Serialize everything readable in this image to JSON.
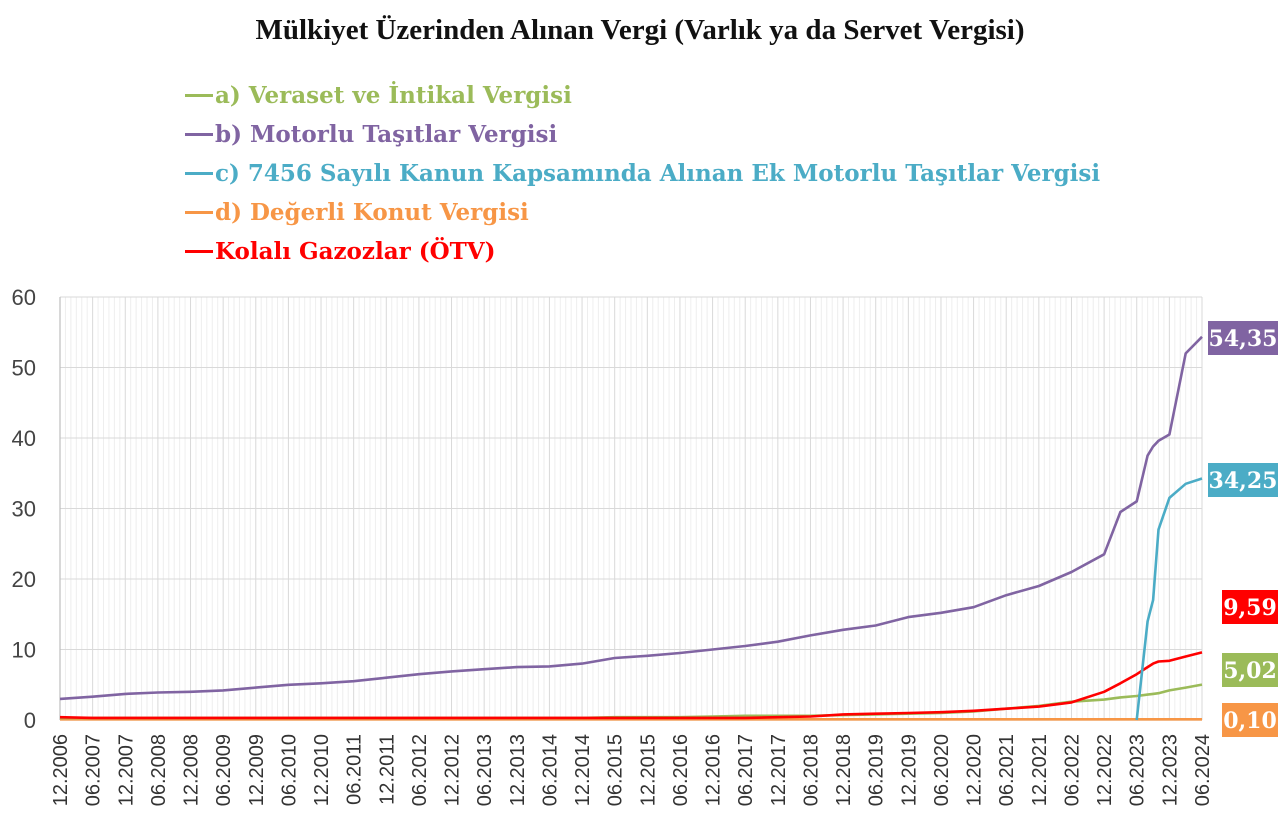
{
  "chart_data": {
    "type": "line",
    "title": "Mülkiyet Üzerinden Alınan Vergi (Varlık ya da Servet Vergisi)",
    "xlabel": "",
    "ylabel": "",
    "ylim": [
      0,
      60
    ],
    "yticks": [
      "0",
      "10",
      "20",
      "30",
      "40",
      "50",
      "60"
    ],
    "grid": true,
    "legend_position": "top-left",
    "x_tick_labels": [
      "12.2006",
      "06.2007",
      "12.2007",
      "06.2008",
      "12.2008",
      "06.2009",
      "12.2009",
      "06.2010",
      "12.2010",
      "06.2011",
      "12.2011",
      "06.2012",
      "12.2012",
      "06.2013",
      "12.2013",
      "06.2014",
      "12.2014",
      "06.2015",
      "12.2015",
      "06.2016",
      "12.2016",
      "06.2017",
      "12.2017",
      "06.2018",
      "12.2018",
      "06.2019",
      "12.2019",
      "06.2020",
      "12.2020",
      "06.2021",
      "12.2021",
      "06.2022",
      "12.2022",
      "06.2023",
      "12.2023",
      "06.2024"
    ],
    "x": [
      "2006-12",
      "2007-06",
      "2007-12",
      "2008-06",
      "2008-12",
      "2009-06",
      "2009-12",
      "2010-06",
      "2010-12",
      "2011-06",
      "2011-12",
      "2012-06",
      "2012-12",
      "2013-06",
      "2013-12",
      "2014-06",
      "2014-12",
      "2015-06",
      "2015-12",
      "2016-06",
      "2016-12",
      "2017-06",
      "2017-12",
      "2018-06",
      "2018-12",
      "2019-06",
      "2019-12",
      "2020-06",
      "2020-12",
      "2021-06",
      "2021-12",
      "2022-06",
      "2022-12",
      "2023-03",
      "2023-06",
      "2023-08",
      "2023-09",
      "2023-10",
      "2023-12",
      "2024-03",
      "2024-06"
    ],
    "series": [
      {
        "name": "a) Veraset ve İntikal Vergisi",
        "color": "#9bbb59",
        "end_label": "5,02",
        "values": [
          0.3,
          0.3,
          0.3,
          0.3,
          0.3,
          0.3,
          0.3,
          0.3,
          0.3,
          0.3,
          0.3,
          0.3,
          0.3,
          0.3,
          0.3,
          0.3,
          0.3,
          0.4,
          0.4,
          0.4,
          0.5,
          0.6,
          0.6,
          0.6,
          0.7,
          0.8,
          0.9,
          1.0,
          1.2,
          1.6,
          2.0,
          2.6,
          2.9,
          3.2,
          3.4,
          3.6,
          3.7,
          3.8,
          4.2,
          4.6,
          5.02
        ]
      },
      {
        "name": "b) Motorlu Taşıtlar Vergisi",
        "color": "#8064a2",
        "end_label": "54,35",
        "values": [
          3.0,
          3.3,
          3.7,
          3.9,
          4.0,
          4.2,
          4.6,
          5.0,
          5.2,
          5.5,
          6.0,
          6.5,
          6.9,
          7.2,
          7.5,
          7.6,
          8.0,
          8.8,
          9.1,
          9.5,
          10.0,
          10.5,
          11.1,
          12.0,
          12.8,
          13.4,
          14.6,
          15.2,
          16.0,
          17.7,
          19.0,
          21.0,
          23.5,
          29.5,
          31.0,
          37.5,
          38.8,
          39.6,
          40.5,
          52.0,
          54.35
        ]
      },
      {
        "name": "c) 7456 Sayılı Kanun Kapsamında Alınan Ek Motorlu Taşıtlar Vergisi",
        "color": "#4bacc6",
        "end_label": "34,25",
        "values": [
          null,
          null,
          null,
          null,
          null,
          null,
          null,
          null,
          null,
          null,
          null,
          null,
          null,
          null,
          null,
          null,
          null,
          null,
          null,
          null,
          null,
          null,
          null,
          null,
          null,
          null,
          null,
          null,
          null,
          null,
          null,
          null,
          null,
          null,
          0.0,
          14.0,
          17.0,
          27.0,
          31.5,
          33.5,
          34.25
        ]
      },
      {
        "name": "d) Değerli Konut Vergisi",
        "color": "#f79646",
        "end_label": "0,10",
        "values": [
          0.1,
          0.1,
          0.1,
          0.1,
          0.1,
          0.1,
          0.1,
          0.1,
          0.1,
          0.1,
          0.1,
          0.1,
          0.1,
          0.1,
          0.1,
          0.1,
          0.1,
          0.1,
          0.1,
          0.1,
          0.1,
          0.1,
          0.1,
          0.1,
          0.1,
          0.1,
          0.1,
          0.1,
          0.1,
          0.1,
          0.1,
          0.1,
          0.1,
          0.1,
          0.1,
          0.1,
          0.1,
          0.1,
          0.1,
          0.1,
          0.1
        ]
      },
      {
        "name": "Kolalı Gazozlar (ÖTV)",
        "color": "#ff0000",
        "end_label": "9,59",
        "values": [
          0.4,
          0.3,
          0.3,
          0.3,
          0.3,
          0.3,
          0.3,
          0.3,
          0.3,
          0.3,
          0.3,
          0.3,
          0.3,
          0.3,
          0.3,
          0.3,
          0.3,
          0.3,
          0.3,
          0.3,
          0.3,
          0.3,
          0.4,
          0.5,
          0.8,
          0.9,
          1.0,
          1.1,
          1.3,
          1.6,
          1.9,
          2.5,
          4.0,
          5.2,
          6.5,
          7.5,
          8.0,
          8.3,
          8.4,
          9.0,
          9.59
        ]
      }
    ]
  }
}
